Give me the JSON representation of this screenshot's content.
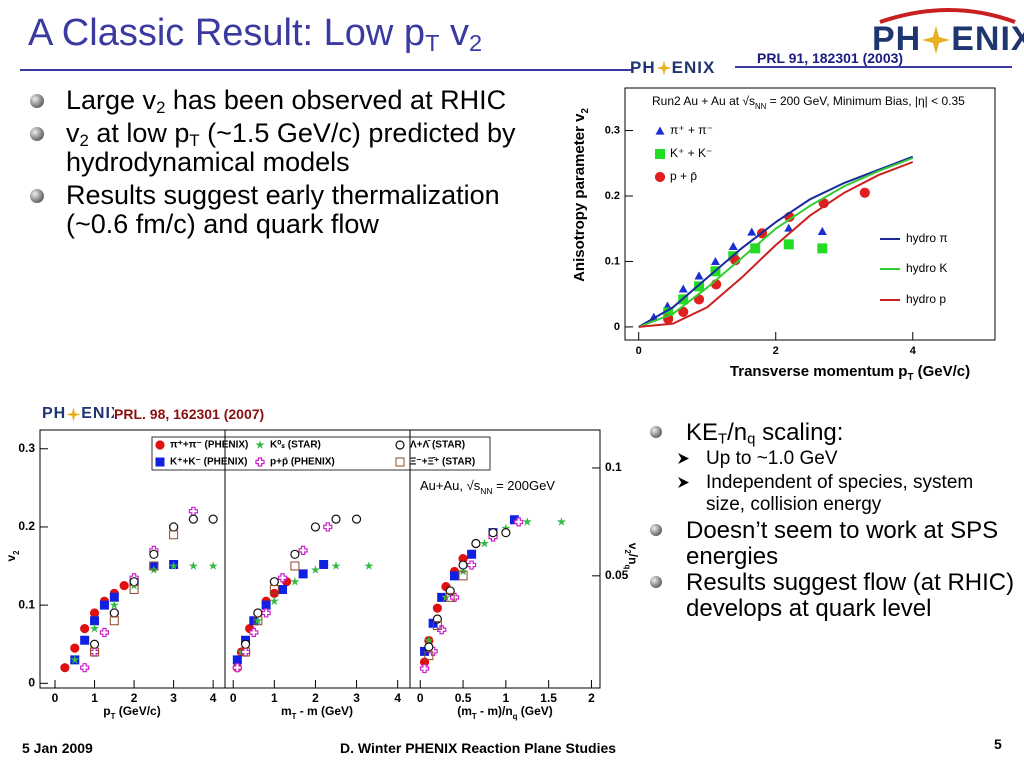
{
  "title": [
    {
      "text": "A Classic Result: Low p"
    },
    {
      "text": "T",
      "sub": true
    },
    {
      "text": " v"
    },
    {
      "text": "2",
      "sub": true
    }
  ],
  "logo": {
    "left": "PH",
    "right": "ENIX"
  },
  "top_ref": "PRL 91, 182301 (2003)",
  "bottom_ref": "PRL. 98, 162301 (2007)",
  "top_bullets": [
    [
      {
        "text": "Large v"
      },
      {
        "text": "2",
        "sub": true
      },
      {
        "text": " has been observed at RHIC"
      }
    ],
    [
      {
        "text": "v"
      },
      {
        "text": "2",
        "sub": true
      },
      {
        "text": " at low p"
      },
      {
        "text": "T",
        "sub": true
      },
      {
        "text": " (~1.5 GeV/c) predicted by hydrodynamical models"
      }
    ],
    [
      {
        "text": "Results suggest early thermalization (~0.6 fm/c) and quark flow"
      }
    ]
  ],
  "right_bullets": [
    {
      "text": [
        {
          "text": "KE"
        },
        {
          "text": "T",
          "sub": true
        },
        {
          "text": "/n"
        },
        {
          "text": "q",
          "sub": true
        },
        {
          "text": " scaling:"
        }
      ],
      "sub_bullets": [
        [
          {
            "text": "Up to ~1.0 GeV"
          }
        ],
        [
          {
            "text": "Independent of species, system size, collision energy"
          }
        ]
      ]
    },
    {
      "text": [
        {
          "text": "Doesn’t seem to work at SPS energies"
        }
      ]
    },
    {
      "text": [
        {
          "text": "Results suggest flow (at RHIC) develops at quark level"
        }
      ]
    }
  ],
  "footer": {
    "date": "5 Jan 2009",
    "center": "D. Winter PHENIX Reaction Plane Studies",
    "page": "5"
  },
  "chart_data": [
    {
      "type": "scatter",
      "title": [
        {
          "text": "Run2 Au + Au at √s"
        },
        {
          "text": "NN",
          "sub": true
        },
        {
          "text": " = 200 GeV, Minimum Bias, |η| < 0.35"
        }
      ],
      "xlabel": [
        {
          "text": "Transverse momentum p"
        },
        {
          "text": "T",
          "sub": true
        },
        {
          "text": " (GeV/c)"
        }
      ],
      "ylabel": [
        {
          "text": "Anisotropy parameter v"
        },
        {
          "text": "2",
          "sub": true
        }
      ],
      "xlim": [
        -0.2,
        5.2
      ],
      "ylim": [
        -0.02,
        0.365
      ],
      "xticks": [
        0,
        2,
        4
      ],
      "yticks": [
        0,
        0.1,
        0.2,
        0.3
      ],
      "series": [
        {
          "name": "π⁺ + π⁻",
          "color": "#1a2fd0",
          "marker": "triangle",
          "x": [
            0.22,
            0.42,
            0.65,
            0.88,
            1.12,
            1.38,
            1.65,
            2.19,
            2.68
          ],
          "values": [
            0.015,
            0.032,
            0.058,
            0.078,
            0.1,
            0.123,
            0.145,
            0.151,
            0.146
          ]
        },
        {
          "name": "K⁺ + K⁻",
          "color": "#22dd22",
          "marker": "square",
          "x": [
            0.43,
            0.65,
            0.88,
            1.12,
            1.38,
            1.7,
            2.19,
            2.68
          ],
          "values": [
            0.022,
            0.042,
            0.062,
            0.085,
            0.108,
            0.12,
            0.126,
            0.12
          ]
        },
        {
          "name": "p + p̄",
          "color": "#e02020",
          "marker": "circle",
          "x": [
            0.43,
            0.65,
            0.88,
            1.13,
            1.41,
            1.8,
            2.2,
            2.7,
            3.3
          ],
          "values": [
            0.012,
            0.023,
            0.042,
            0.065,
            0.102,
            0.143,
            0.168,
            0.189,
            0.205
          ]
        },
        {
          "name": "hydro π",
          "color": "#1a2a9a",
          "marker": "line",
          "x": [
            0,
            0.5,
            1,
            1.5,
            2,
            2.5,
            3,
            3.5,
            4
          ],
          "values": [
            0,
            0.03,
            0.075,
            0.12,
            0.16,
            0.195,
            0.22,
            0.24,
            0.26
          ]
        },
        {
          "name": "hydro K",
          "color": "#33cc33",
          "marker": "line",
          "x": [
            0,
            0.5,
            1,
            1.5,
            2,
            2.5,
            3,
            3.5,
            4
          ],
          "values": [
            0,
            0.02,
            0.06,
            0.105,
            0.15,
            0.185,
            0.215,
            0.238,
            0.258
          ]
        },
        {
          "name": "hydro p",
          "color": "#cc2020",
          "marker": "line",
          "x": [
            0,
            0.5,
            1,
            1.5,
            2,
            2.5,
            3,
            3.5,
            4
          ],
          "values": [
            0,
            0.005,
            0.03,
            0.075,
            0.125,
            0.17,
            0.205,
            0.232,
            0.252
          ]
        }
      ]
    },
    {
      "type": "scatter",
      "xlabel": [
        {
          "text": "p"
        },
        {
          "text": "T",
          "sub": true
        },
        {
          "text": " (GeV/c)"
        }
      ],
      "ylabel": [
        {
          "text": "v"
        },
        {
          "text": "2",
          "sub": true
        }
      ],
      "xlim": [
        -0.38,
        4.3
      ],
      "ylim": [
        -0.006,
        0.324
      ],
      "xticks": [
        0,
        1,
        2,
        3,
        4
      ],
      "yticks": [
        0,
        0.1,
        0.2,
        0.3
      ],
      "series": [
        {
          "name": "π⁺+π⁻ (PHENIX)",
          "color": "#e01010",
          "marker": "circle",
          "x": [
            0.25,
            0.5,
            0.75,
            1,
            1.25,
            1.5,
            1.75,
            2
          ],
          "values": [
            0.02,
            0.045,
            0.07,
            0.09,
            0.105,
            0.115,
            0.125,
            0.13
          ]
        },
        {
          "name": "K⁺+K⁻ (PHENIX)",
          "color": "#1020e0",
          "marker": "square",
          "x": [
            0.5,
            0.75,
            1,
            1.25,
            1.5,
            2,
            2.5,
            3
          ],
          "values": [
            0.03,
            0.055,
            0.08,
            0.1,
            0.11,
            0.13,
            0.15,
            0.152
          ]
        },
        {
          "name": "K⁰ₛ (STAR)",
          "color": "#33bb44",
          "marker": "star",
          "x": [
            0.5,
            1,
            1.5,
            2,
            2.5,
            3,
            3.5,
            4
          ],
          "values": [
            0.03,
            0.07,
            0.1,
            0.125,
            0.145,
            0.15,
            0.15,
            0.15
          ]
        },
        {
          "name": "p+p̄ (PHENIX)",
          "color": "#cc22cc",
          "marker": "cross-open",
          "x": [
            0.75,
            1,
            1.25,
            1.5,
            2,
            2.5,
            3,
            3.5
          ],
          "values": [
            0.02,
            0.04,
            0.065,
            0.09,
            0.135,
            0.17,
            0.2,
            0.22
          ]
        },
        {
          "name": "Λ+Λ̄ (STAR)",
          "color": "#111111",
          "marker": "circle-open",
          "x": [
            1,
            1.5,
            2,
            2.5,
            3,
            3.5,
            4
          ],
          "values": [
            0.05,
            0.09,
            0.13,
            0.165,
            0.2,
            0.21,
            0.21
          ]
        },
        {
          "name": "Ξ⁻+Ξ̄⁺ (STAR)",
          "color": "#8b4a2a",
          "marker": "square-open",
          "x": [
            1,
            1.5,
            2,
            2.5,
            3
          ],
          "values": [
            0.04,
            0.08,
            0.12,
            0.15,
            0.19
          ]
        }
      ]
    },
    {
      "type": "scatter",
      "xlabel": [
        {
          "text": "m"
        },
        {
          "text": "T",
          "sub": true
        },
        {
          "text": " - m (GeV)"
        }
      ],
      "xlim": [
        -0.2,
        4.3
      ],
      "ylim": [
        -0.006,
        0.324
      ],
      "xticks": [
        0,
        1,
        2,
        3,
        4
      ],
      "series": [
        {
          "color": "#e01010",
          "marker": "circle",
          "x": [
            0.1,
            0.2,
            0.4,
            0.6,
            0.8,
            1.0,
            1.3
          ],
          "values": [
            0.02,
            0.04,
            0.07,
            0.09,
            0.105,
            0.115,
            0.13
          ]
        },
        {
          "color": "#1020e0",
          "marker": "square",
          "x": [
            0.1,
            0.3,
            0.5,
            0.8,
            1.2,
            1.7,
            2.2
          ],
          "values": [
            0.03,
            0.055,
            0.08,
            0.1,
            0.12,
            0.14,
            0.152
          ]
        },
        {
          "color": "#33bb44",
          "marker": "star",
          "x": [
            0.2,
            0.6,
            1.0,
            1.5,
            2.0,
            2.5,
            3.3
          ],
          "values": [
            0.04,
            0.08,
            0.105,
            0.13,
            0.145,
            0.15,
            0.15
          ]
        },
        {
          "color": "#cc22cc",
          "marker": "cross-open",
          "x": [
            0.1,
            0.3,
            0.5,
            0.8,
            1.2,
            1.7,
            2.3
          ],
          "values": [
            0.02,
            0.04,
            0.065,
            0.09,
            0.135,
            0.17,
            0.2
          ]
        },
        {
          "color": "#111111",
          "marker": "circle-open",
          "x": [
            0.3,
            0.6,
            1.0,
            1.5,
            2.0,
            2.5,
            3.0
          ],
          "values": [
            0.05,
            0.09,
            0.13,
            0.165,
            0.2,
            0.21,
            0.21
          ]
        },
        {
          "color": "#8b4a2a",
          "marker": "square-open",
          "x": [
            0.3,
            0.6,
            1.0,
            1.5
          ],
          "values": [
            0.04,
            0.08,
            0.12,
            0.15
          ]
        }
      ]
    },
    {
      "type": "scatter",
      "annotation": [
        {
          "text": "Au+Au, √s"
        },
        {
          "text": "NN",
          "sub": true
        },
        {
          "text": " = 200GeV"
        }
      ],
      "xlabel": [
        {
          "text": "(m"
        },
        {
          "text": "T",
          "sub": true
        },
        {
          "text": " - m)/n"
        },
        {
          "text": "q",
          "sub": true
        },
        {
          "text": " (GeV)"
        }
      ],
      "y2label": [
        {
          "text": "v"
        },
        {
          "text": "2",
          "sub": true
        },
        {
          "text": "/n"
        },
        {
          "text": "q",
          "sub": true
        }
      ],
      "xlim": [
        -0.12,
        2.1
      ],
      "y2lim": [
        -0.002,
        0.1176
      ],
      "xticks": [
        0,
        0.5,
        1,
        1.5,
        2
      ],
      "y2ticks": [
        0.05,
        0.1
      ],
      "series": [
        {
          "axis": "y2",
          "color": "#e01010",
          "marker": "circle",
          "x": [
            0.05,
            0.1,
            0.2,
            0.3,
            0.4,
            0.5,
            0.65
          ],
          "values": [
            0.01,
            0.02,
            0.035,
            0.045,
            0.052,
            0.058,
            0.065
          ]
        },
        {
          "axis": "y2",
          "color": "#1020e0",
          "marker": "square",
          "x": [
            0.05,
            0.15,
            0.25,
            0.4,
            0.6,
            0.85,
            1.1
          ],
          "values": [
            0.015,
            0.028,
            0.04,
            0.05,
            0.06,
            0.07,
            0.076
          ]
        },
        {
          "axis": "y2",
          "color": "#33bb44",
          "marker": "star",
          "x": [
            0.1,
            0.3,
            0.5,
            0.75,
            1.0,
            1.25,
            1.65
          ],
          "values": [
            0.02,
            0.04,
            0.052,
            0.065,
            0.072,
            0.075,
            0.075
          ]
        },
        {
          "axis": "y2",
          "color": "#cc22cc",
          "marker": "cross-open",
          "x": [
            0.05,
            0.15,
            0.25,
            0.4,
            0.6,
            0.85,
            1.15
          ],
          "values": [
            0.007,
            0.015,
            0.025,
            0.04,
            0.055,
            0.068,
            0.075
          ]
        },
        {
          "axis": "y2",
          "color": "#111111",
          "marker": "circle-open",
          "x": [
            0.1,
            0.2,
            0.35,
            0.5,
            0.65,
            0.85,
            1.0
          ],
          "values": [
            0.017,
            0.03,
            0.043,
            0.055,
            0.065,
            0.07,
            0.07
          ]
        },
        {
          "axis": "y2",
          "color": "#8b4a2a",
          "marker": "square-open",
          "x": [
            0.1,
            0.2,
            0.35,
            0.5
          ],
          "values": [
            0.013,
            0.027,
            0.04,
            0.05
          ]
        }
      ]
    }
  ]
}
